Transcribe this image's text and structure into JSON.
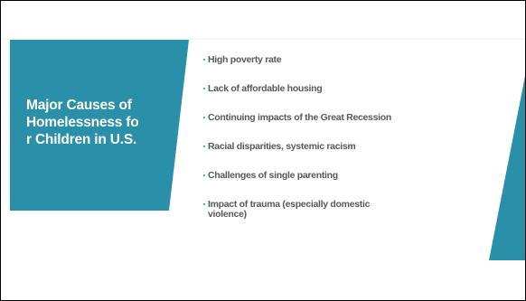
{
  "slide": {
    "title": "Major Causes of Homelessness for Children in U.S.",
    "bullets": [
      "High poverty rate",
      "Lack of affordable housing",
      "Continuing impacts of the Great Recession",
      "Racial disparities, systemic racism",
      "Challenges of single parenting",
      "Impact of trauma (especially domestic violence)"
    ]
  },
  "colors": {
    "accent": "#2a8fa8",
    "text": "#595959",
    "title_text": "#ffffff",
    "background": "#ffffff"
  }
}
